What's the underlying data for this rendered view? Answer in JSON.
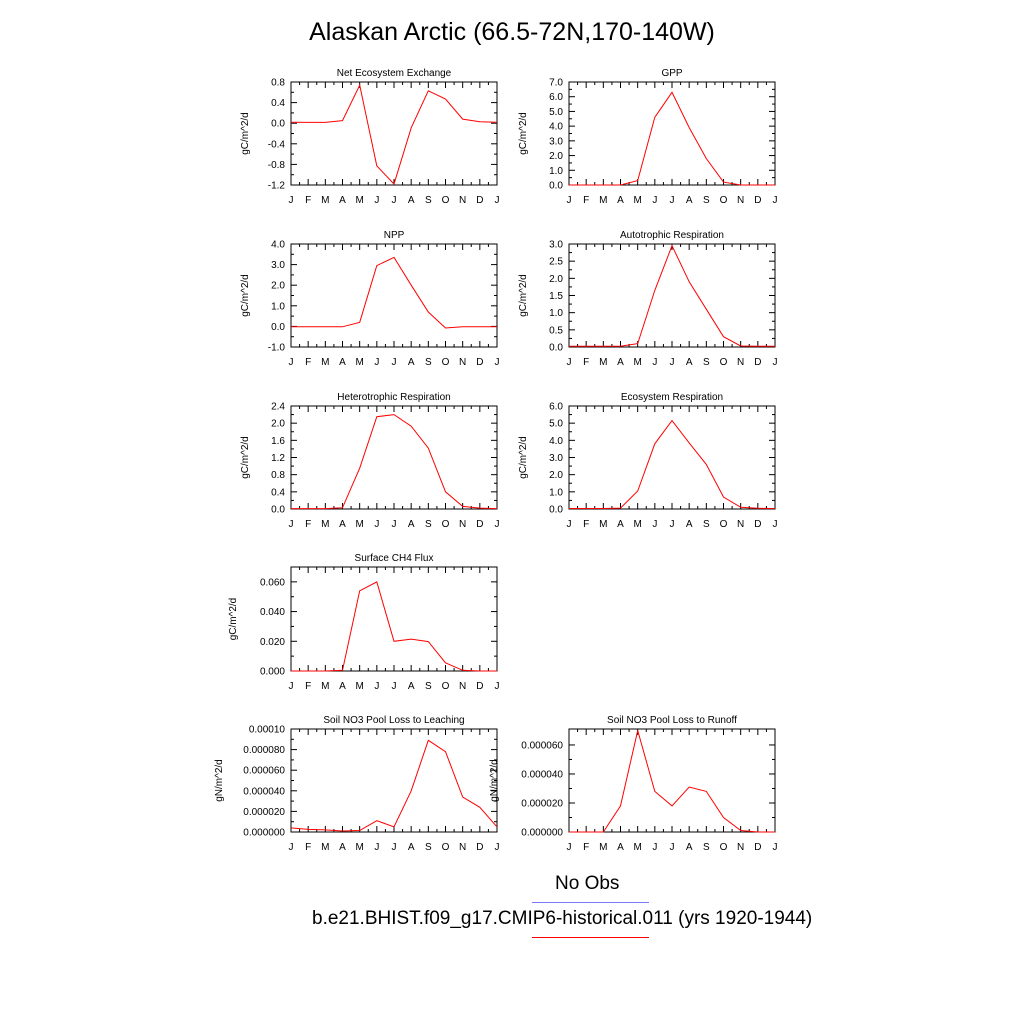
{
  "title": "Alaskan Arctic (66.5-72N,170-140W)",
  "colors": {
    "model": "#ff0000",
    "obs": "#7777ff"
  },
  "legend": {
    "obs_label": "No Obs",
    "model_label": "b.e21.BHIST.f09_g17.CMIP6-historical.011 (yrs 1920-1944)"
  },
  "chart_data": [
    {
      "type": "line",
      "title": "Net Ecosystem Exchange",
      "ylabel": "gC/m^2/d",
      "ylim": [
        -1.2,
        0.8
      ],
      "yticks": [
        -1.2,
        -0.8,
        -0.4,
        0.0,
        0.4,
        0.8
      ],
      "ytick_labels": [
        "-1.2",
        "-0.8",
        "-0.4",
        "0.0",
        "0.4",
        "0.8"
      ],
      "categories": [
        "J",
        "F",
        "M",
        "A",
        "M",
        "J",
        "J",
        "A",
        "S",
        "O",
        "N",
        "D",
        "J"
      ],
      "values": [
        0.02,
        0.015,
        0.015,
        0.05,
        0.74,
        -0.83,
        -1.18,
        -0.09,
        0.63,
        0.47,
        0.08,
        0.03,
        0.02
      ]
    },
    {
      "type": "line",
      "title": "GPP",
      "ylabel": "gC/m^2/d",
      "ylim": [
        0.0,
        7.0
      ],
      "yticks": [
        0.0,
        1.0,
        2.0,
        3.0,
        4.0,
        5.0,
        6.0,
        7.0
      ],
      "ytick_labels": [
        "0.0",
        "1.0",
        "2.0",
        "3.0",
        "4.0",
        "5.0",
        "6.0",
        "7.0"
      ],
      "categories": [
        "J",
        "F",
        "M",
        "A",
        "M",
        "J",
        "J",
        "A",
        "S",
        "O",
        "N",
        "D",
        "J"
      ],
      "values": [
        0.0,
        0.0,
        0.0,
        0.0,
        0.3,
        4.6,
        6.3,
        3.9,
        1.8,
        0.2,
        0.0,
        0.0,
        0.0
      ]
    },
    {
      "type": "line",
      "title": "NPP",
      "ylabel": "gC/m^2/d",
      "ylim": [
        -1.0,
        4.0
      ],
      "yticks": [
        -1.0,
        0.0,
        1.0,
        2.0,
        3.0,
        4.0
      ],
      "ytick_labels": [
        "-1.0",
        "0.0",
        "1.0",
        "2.0",
        "3.0",
        "4.0"
      ],
      "categories": [
        "J",
        "F",
        "M",
        "A",
        "M",
        "J",
        "J",
        "A",
        "S",
        "O",
        "N",
        "D",
        "J"
      ],
      "values": [
        -0.02,
        -0.02,
        -0.02,
        -0.02,
        0.2,
        2.95,
        3.35,
        2.0,
        0.7,
        -0.08,
        -0.02,
        -0.02,
        -0.02
      ]
    },
    {
      "type": "line",
      "title": "Autotrophic Respiration",
      "ylabel": "gC/m^2/d",
      "ylim": [
        0.0,
        3.0
      ],
      "yticks": [
        0.0,
        0.5,
        1.0,
        1.5,
        2.0,
        2.5,
        3.0
      ],
      "ytick_labels": [
        "0.0",
        "0.5",
        "1.0",
        "1.5",
        "2.0",
        "2.5",
        "3.0"
      ],
      "categories": [
        "J",
        "F",
        "M",
        "A",
        "M",
        "J",
        "J",
        "A",
        "S",
        "O",
        "N",
        "D",
        "J"
      ],
      "values": [
        0.02,
        0.02,
        0.02,
        0.02,
        0.1,
        1.65,
        2.95,
        1.9,
        1.1,
        0.3,
        0.03,
        0.02,
        0.02
      ]
    },
    {
      "type": "line",
      "title": "Heterotrophic Respiration",
      "ylabel": "gC/m^2/d",
      "ylim": [
        0.0,
        2.4
      ],
      "yticks": [
        0.0,
        0.4,
        0.8,
        1.2,
        1.6,
        2.0,
        2.4
      ],
      "ytick_labels": [
        "0.0",
        "0.4",
        "0.8",
        "1.2",
        "1.6",
        "2.0",
        "2.4"
      ],
      "categories": [
        "J",
        "F",
        "M",
        "A",
        "M",
        "J",
        "J",
        "A",
        "S",
        "O",
        "N",
        "D",
        "J"
      ],
      "values": [
        0.01,
        0.01,
        0.01,
        0.03,
        0.95,
        2.15,
        2.2,
        1.93,
        1.42,
        0.4,
        0.06,
        0.02,
        0.01
      ]
    },
    {
      "type": "line",
      "title": "Ecosystem Respiration",
      "ylabel": "gC/m^2/d",
      "ylim": [
        0.0,
        6.0
      ],
      "yticks": [
        0.0,
        1.0,
        2.0,
        3.0,
        4.0,
        5.0,
        6.0
      ],
      "ytick_labels": [
        "0.0",
        "1.0",
        "2.0",
        "3.0",
        "4.0",
        "5.0",
        "6.0"
      ],
      "categories": [
        "J",
        "F",
        "M",
        "A",
        "M",
        "J",
        "J",
        "A",
        "S",
        "O",
        "N",
        "D",
        "J"
      ],
      "values": [
        0.03,
        0.03,
        0.03,
        0.05,
        1.05,
        3.8,
        5.15,
        3.85,
        2.6,
        0.7,
        0.1,
        0.04,
        0.03
      ]
    },
    {
      "type": "line",
      "title": "Surface CH4 Flux",
      "ylabel": "gC/m^2/d",
      "ylim": [
        0.0,
        0.07
      ],
      "yticks": [
        0.0,
        0.02,
        0.04,
        0.06
      ],
      "ytick_labels": [
        "0.000",
        "0.020",
        "0.040",
        "0.060"
      ],
      "categories": [
        "J",
        "F",
        "M",
        "A",
        "M",
        "J",
        "J",
        "A",
        "S",
        "O",
        "N",
        "D",
        "J"
      ],
      "values": [
        0.0,
        0.0,
        0.0,
        0.0005,
        0.054,
        0.06,
        0.02,
        0.0215,
        0.0198,
        0.0055,
        0.0005,
        0.0,
        0.0
      ]
    },
    {
      "type": "line",
      "title": "Soil NO3 Pool Loss to Leaching",
      "ylabel": "gN/m^2/d",
      "ylim": [
        0.0,
        0.0001
      ],
      "yticks": [
        0.0,
        2e-05,
        4e-05,
        6e-05,
        8e-05,
        0.0001
      ],
      "ytick_labels": [
        "0.000000",
        "0.000020",
        "0.000040",
        "0.000060",
        "0.000080",
        "0.00010"
      ],
      "categories": [
        "J",
        "F",
        "M",
        "A",
        "M",
        "J",
        "J",
        "A",
        "S",
        "O",
        "N",
        "D",
        "J"
      ],
      "values": [
        4e-06,
        2.5e-06,
        2e-06,
        1e-06,
        1.5e-06,
        1.1e-05,
        5e-06,
        4e-05,
        8.9e-05,
        7.8e-05,
        3.4e-05,
        2.4e-05,
        5e-06
      ]
    },
    {
      "type": "line",
      "title": "Soil NO3 Pool Loss to Runoff",
      "ylabel": "gN/m^2/d",
      "ylim": [
        0.0,
        7.1e-05
      ],
      "yticks": [
        0.0,
        2e-05,
        4e-05,
        6e-05
      ],
      "ytick_labels": [
        "0.000000",
        "0.000020",
        "0.000040",
        "0.000060"
      ],
      "categories": [
        "J",
        "F",
        "M",
        "A",
        "M",
        "J",
        "J",
        "A",
        "S",
        "O",
        "N",
        "D",
        "J"
      ],
      "values": [
        0.0,
        0.0,
        0.0,
        1.8e-05,
        7e-05,
        2.8e-05,
        1.8e-05,
        3.1e-05,
        2.8e-05,
        1e-05,
        1e-06,
        0.0,
        0.0
      ]
    }
  ]
}
